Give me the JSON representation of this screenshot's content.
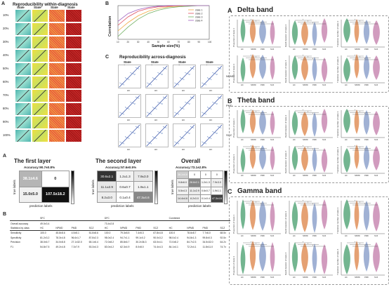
{
  "panelA_top": {
    "label": "A",
    "title": "Reproducibility within-diagnosis",
    "states": [
      "State 1",
      "State 2",
      "State 3",
      "State 4"
    ],
    "rows": [
      "10%",
      "20%",
      "30%",
      "40%",
      "50%",
      "60%",
      "70%",
      "80%",
      "90%",
      "100%"
    ]
  },
  "panelB_top": {
    "label": "B",
    "ylabel": "Correlation",
    "xlabel": "Sample size(%)",
    "legend": [
      "state 1",
      "state 2",
      "state 3",
      "state 4"
    ],
    "colors": [
      "#f0a840",
      "#e05060",
      "#70b060",
      "#a060c0"
    ]
  },
  "panelC_top": {
    "label": "C",
    "title": "Reproducibility across-diagnosis",
    "states": [
      "State 1",
      "State 2",
      "State 3",
      "State 4"
    ],
    "rows": [
      "NPMD",
      "PMD",
      "SCZ"
    ],
    "xlabel": "HC"
  },
  "panelA_bottom": {
    "label": "A",
    "first": {
      "title": "The first layer",
      "acc": "Accuracy:90.7±0.8%",
      "cells": [
        "38.1±4.6",
        "0",
        "15.0±5.0",
        "107.5±18.2"
      ],
      "ylabel": "true labels",
      "xlabel": "prediction labels"
    },
    "second": {
      "title": "The second layer",
      "acc": "Accuracy:57.6±0.5%",
      "cells": [
        "30.6±2.1",
        "1.2±1.3",
        "7.9±3.0",
        "11.1±2.9",
        "0.6±0.7",
        "1.9±1.1",
        "8.2±3.0",
        "0.1±0.4",
        "47.3±4.6"
      ],
      "ylabel": "true labels",
      "xlabel": "prediction labels"
    },
    "overall": {
      "title": "Overall",
      "acc": "Accuracy:73.1±2.8%",
      "cells": [
        "38.1±4.6",
        "0",
        "0",
        "0",
        "9.8±6.0",
        "28.6±2.1",
        "1.2±1.3",
        "7.9±3.0",
        "5.5±4.3",
        "11.1±2.9",
        "0.6±0.7",
        "1.9±1.1",
        "14.4±4.6",
        "8.2±3.0",
        "0.1±0.4",
        "47.3±4.6"
      ],
      "ylabel": "true labels",
      "xlabel": "prediction labels"
    }
  },
  "panelB_bottom": {
    "label": "B",
    "groups": [
      "SFC",
      "DFC",
      "Combined"
    ],
    "overall_label": "Overall accuracy",
    "overall": [
      "49.0±3.4",
      "73.4±2.8",
      ""
    ],
    "stat_label": "Statistics by class",
    "classes": [
      "HC",
      "NPMD",
      "PMD",
      "SCZ"
    ],
    "rows": [
      {
        "name": "Sensitivity",
        "vals": [
          "100.0",
          "45.8±8.6",
          "4.5±5.1",
          "51.8±8.6",
          "100.0",
          "79.3±8.5",
          "7.4±5.3",
          "67.8±4.8",
          "100.0",
          "78.6±8.7",
          "7.7±6.0",
          "68.5±"
        ]
      },
      {
        "name": "Specificity",
        "vals": [
          "81.2±3.2",
          "78.3±4.8",
          "96.6±1.7",
          "87.8±2.3",
          "98.0±2.4",
          "94.7±1.1",
          "99.1±0.2",
          "90.0±3.2",
          "98.0±2.4",
          "94.8±1.3",
          "99.8±0.3",
          "92.5±"
        ]
      },
      {
        "name": "Precision",
        "vals": [
          "38.0±6.7",
          "34.0±8.8",
          "27.1±32.0",
          "65.1±6.4",
          "72.0±8.2",
          "85.8±6.7",
          "30.2±36.3",
          "63.0±4.1",
          "72.0±8.2",
          "84.7±2.3",
          "34.5±32.0",
          "64.2±"
        ]
      },
      {
        "name": "F1",
        "vals": [
          "54.8±7.5",
          "49.2±4.8",
          "7.3±7.9",
          "53.3±4.3",
          "83.0±4.2",
          "62.3±4.9",
          "8.0±8.0",
          "74.4±4.3",
          "84.1±4.1",
          "72.2±4.1",
          "11.8±11.0",
          "74.7±"
        ]
      }
    ]
  },
  "right": {
    "delta": {
      "label": "A",
      "title": "Delta band"
    },
    "theta": {
      "label": "B",
      "title": "Theta band"
    },
    "gamma": {
      "label": "C",
      "title": "Gamma band"
    },
    "xcats": [
      "HC",
      "NPMD",
      "PMD",
      "SCZ"
    ],
    "ylabels": [
      "Proportion of state 1",
      "Dwell duration of state 2",
      "Transition number of state 3",
      "Proportion of state 3",
      "Dwell duration of state 4",
      "Transition number of state 4"
    ],
    "colors": [
      "#5aa87c",
      "#e0905a",
      "#8fa3cc",
      "#c98ab3"
    ]
  }
}
